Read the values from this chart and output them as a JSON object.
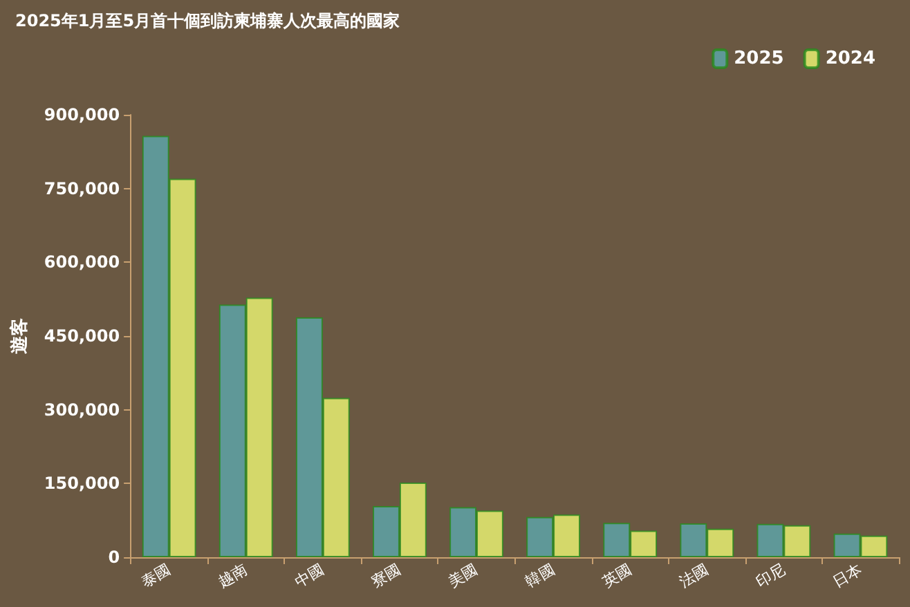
{
  "chart_data": {
    "type": "bar",
    "title": "2025年1月至5月首十個到訪柬埔寨人次最高的國家",
    "ylabel": "遊客",
    "categories": [
      "泰國",
      "越南",
      "中國",
      "寮國",
      "美國",
      "韓國",
      "英國",
      "法國",
      "印尼",
      "日本"
    ],
    "series": [
      {
        "name": "2025",
        "color": "#5f9898",
        "values": [
          857000,
          514000,
          488000,
          104000,
          102000,
          82000,
          70000,
          69000,
          68000,
          48000
        ]
      },
      {
        "name": "2024",
        "color": "#d4d86a",
        "values": [
          770000,
          528000,
          324000,
          152000,
          95000,
          87000,
          54000,
          58000,
          65000,
          44000
        ]
      }
    ],
    "ylim": [
      0,
      900000
    ],
    "yticks": [
      0,
      {
        "value": 150000,
        "label": "150,000"
      },
      {
        "value": 300000,
        "label": "300,000"
      },
      {
        "value": 450000,
        "label": "450,000"
      },
      {
        "value": 600000,
        "label": "600,000"
      },
      {
        "value": 750000,
        "label": "750,000"
      },
      {
        "value": 900000,
        "label": "900,000"
      }
    ],
    "grid": false,
    "legend": "top right"
  }
}
